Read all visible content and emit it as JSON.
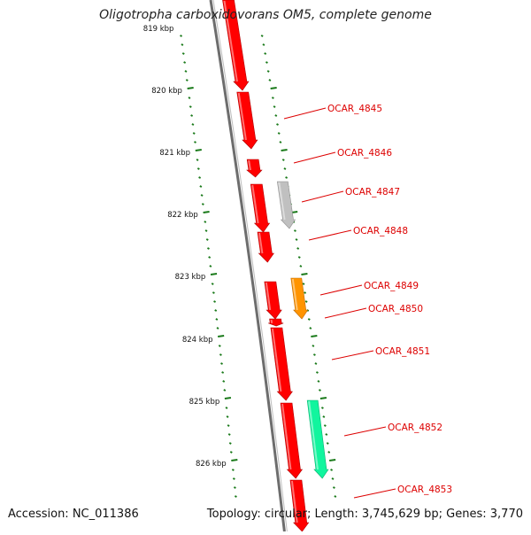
{
  "header": {
    "title": "Oligotropha carboxidovorans OM5, complete genome"
  },
  "footer": {
    "accession": "Accession: NC_011386",
    "summary": "Topology: circular; Length: 3,745,629 bp; Genes: 3,770"
  },
  "colors": {
    "gene_red": "#ff0000",
    "gene_grey": "#c0c0c0",
    "gene_orange": "#ff9400",
    "gene_green": "#11f59e",
    "tick_green": "#1a7a1a",
    "label_red": "#dd0000",
    "backbone": "#888888"
  },
  "axis": {
    "unit": "kbp",
    "labels": [
      "819 kbp",
      "820 kbp",
      "821 kbp",
      "822 kbp",
      "823 kbp",
      "824 kbp",
      "825 kbp",
      "826 kbp"
    ]
  },
  "genes": [
    {
      "id": "g1",
      "label": "OCAR_4845",
      "color": "red"
    },
    {
      "id": "g2",
      "label": "OCAR_4846",
      "color": "red"
    },
    {
      "id": "g3",
      "label": "OCAR_4847",
      "color": "grey"
    },
    {
      "id": "g4",
      "label": "OCAR_4848",
      "color": "red"
    },
    {
      "id": "g5",
      "label": "OCAR_4849",
      "color": "orange"
    },
    {
      "id": "g6",
      "label": "OCAR_4850",
      "color": "red"
    },
    {
      "id": "g7",
      "label": "OCAR_4851",
      "color": "red"
    },
    {
      "id": "g8",
      "label": "OCAR_4852",
      "color": "green"
    },
    {
      "id": "g9",
      "label": "OCAR_4853",
      "color": "red"
    }
  ]
}
